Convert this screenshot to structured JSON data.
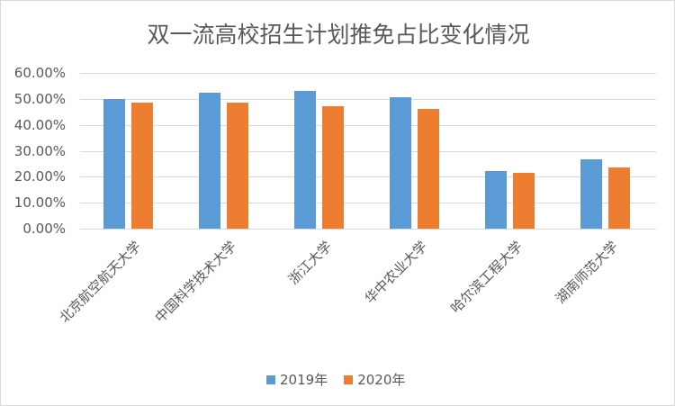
{
  "chart_data": {
    "type": "bar",
    "title": "双一流高校招生计划推免占比变化情况",
    "categories": [
      "北京航空航天大学",
      "中国科学技术大学",
      "浙江大学",
      "华中农业大学",
      "哈尔滨工程大学",
      "湖南师范大学"
    ],
    "series": [
      {
        "name": "2019年",
        "color": "#5b9bd5",
        "values": [
          49.8,
          52.2,
          53.0,
          50.5,
          22.2,
          26.7
        ]
      },
      {
        "name": "2020年",
        "color": "#ed7d31",
        "values": [
          48.4,
          48.4,
          47.3,
          46.0,
          21.5,
          23.5
        ]
      }
    ],
    "yticks": [
      "0.00%",
      "10.00%",
      "20.00%",
      "30.00%",
      "40.00%",
      "50.00%",
      "60.00%"
    ],
    "ylim": [
      0,
      60
    ],
    "grid": true,
    "legend_position": "bottom"
  }
}
